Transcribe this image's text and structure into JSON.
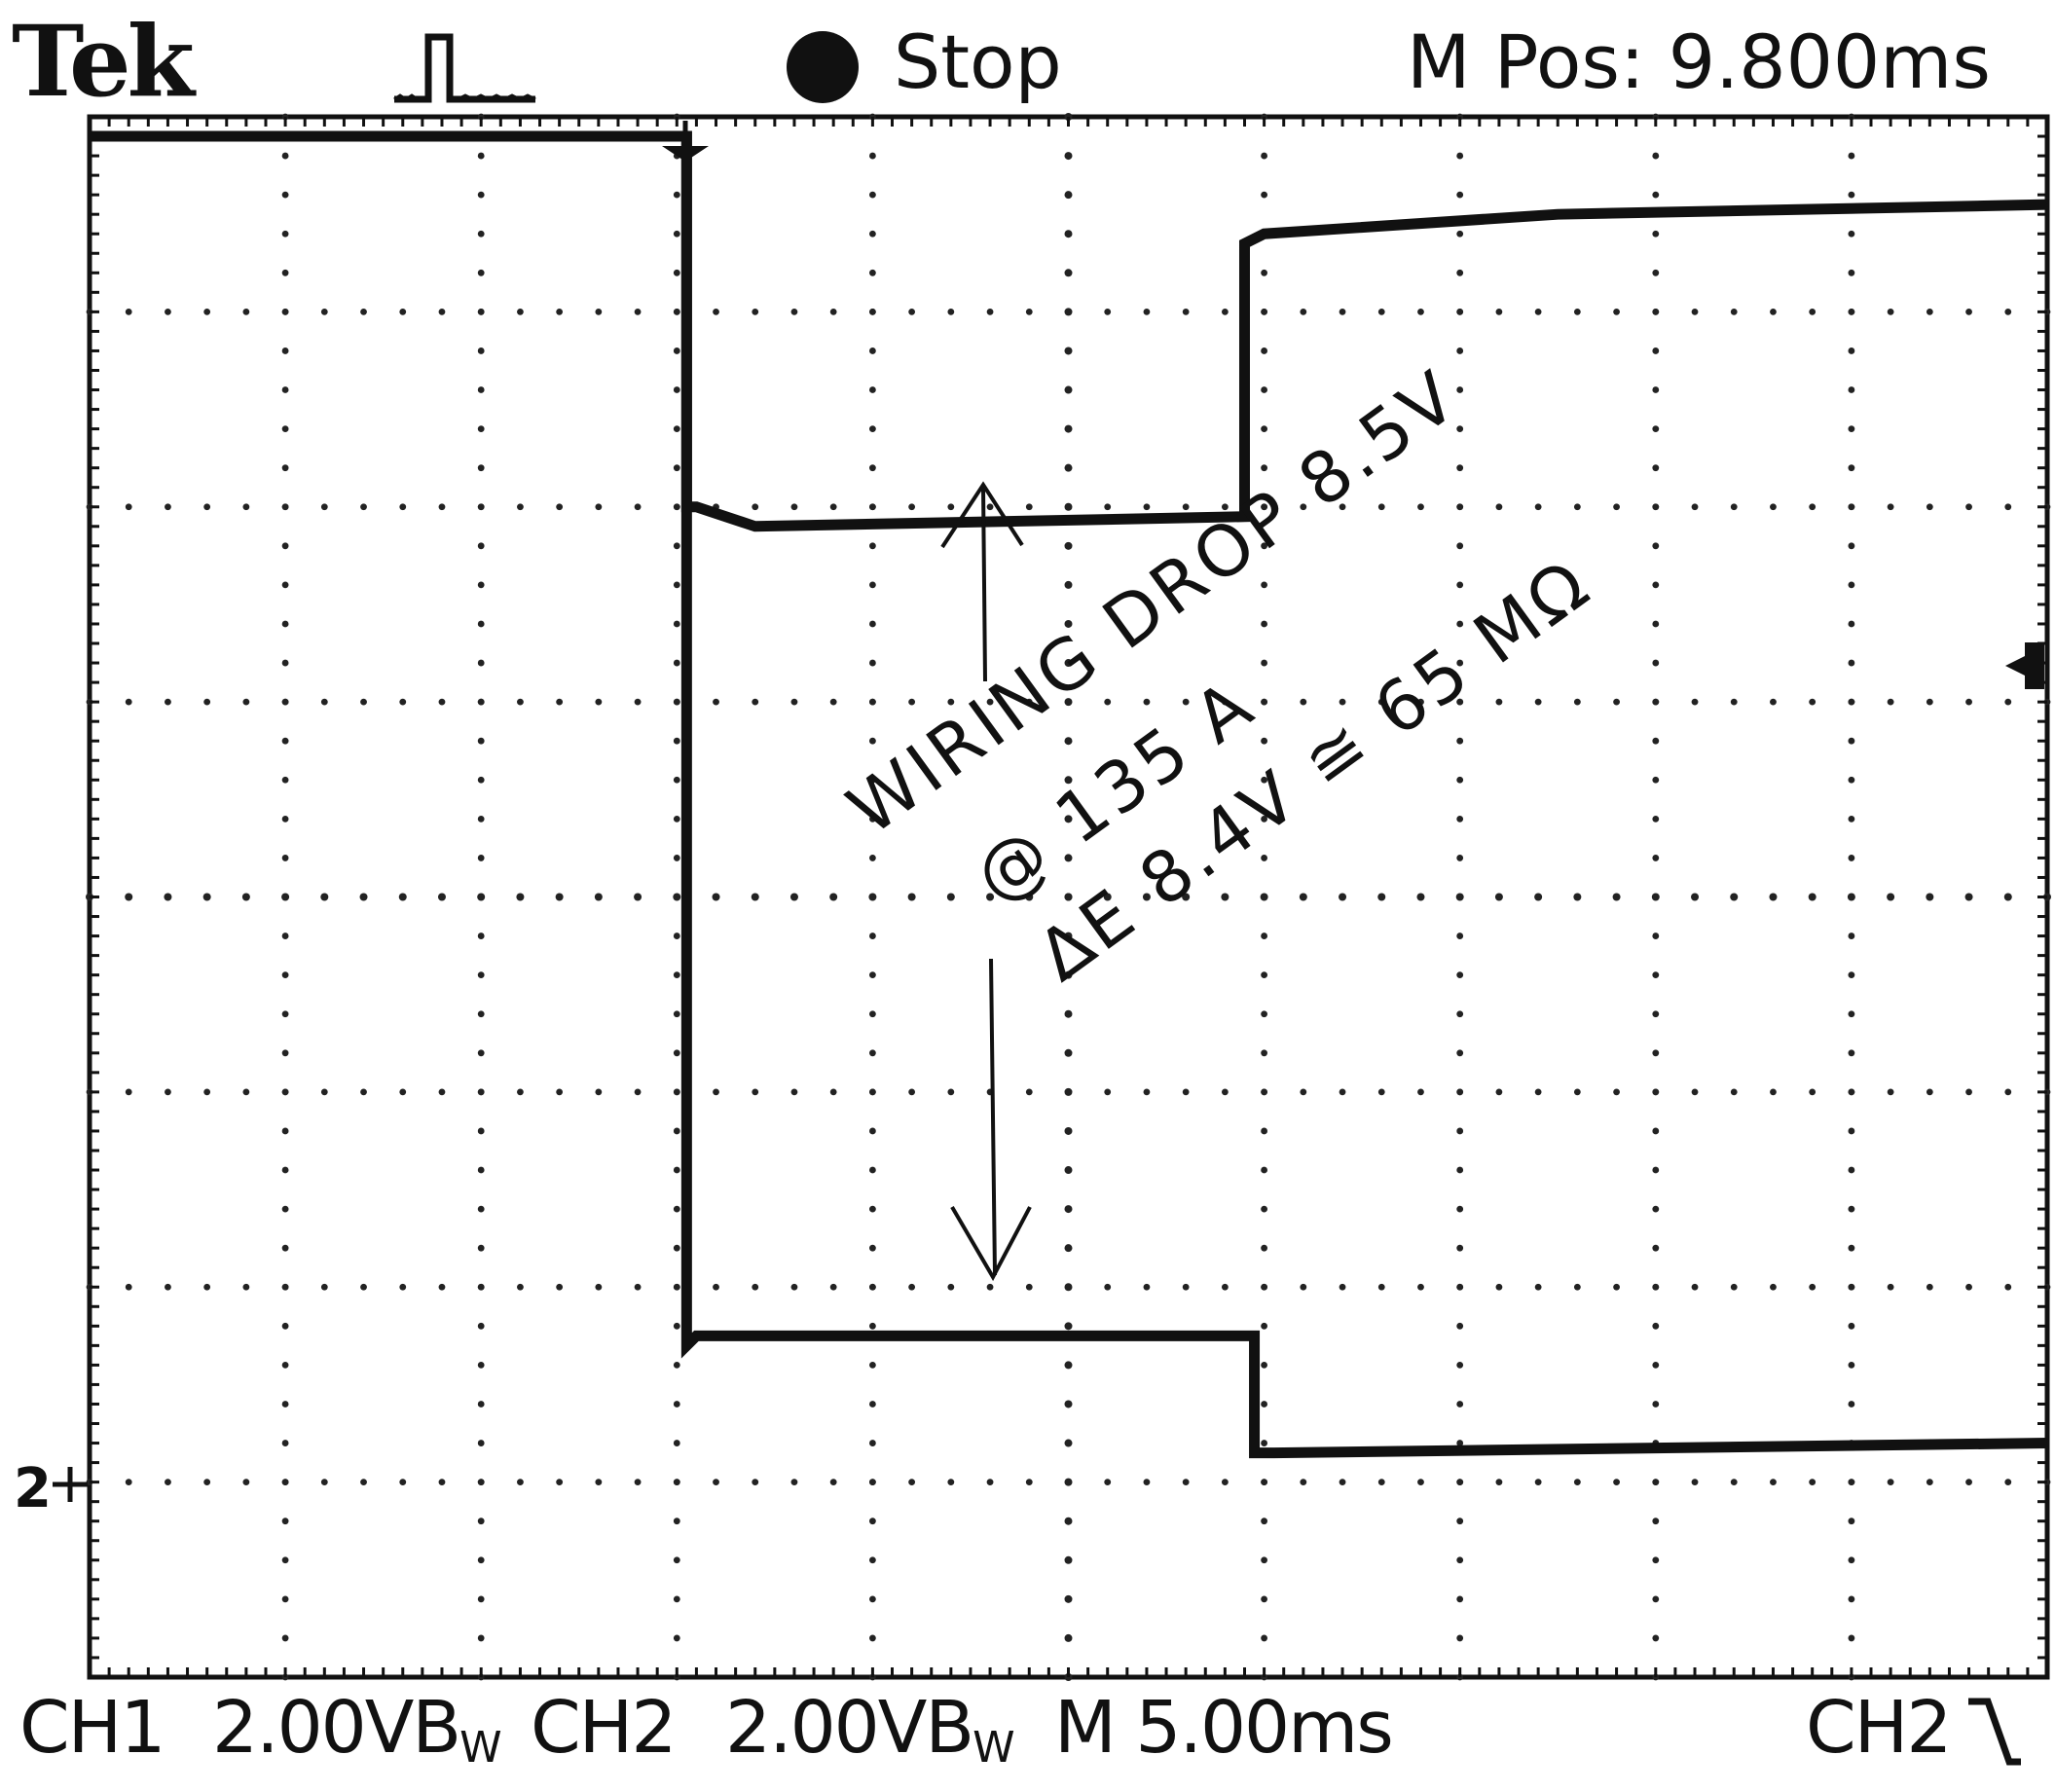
{
  "header": {
    "brand": "Tek",
    "trigger_icon": "pulse-trigger-icon",
    "acq_state": "Stop",
    "horizontal_position": "M Pos: 9.800ms"
  },
  "footer": {
    "ch1_label": "CH1",
    "ch1_scale": "2.00V",
    "ch1_bw": "B",
    "ch1_bw_sub": "W",
    "ch2_label": "CH2",
    "ch2_scale": "2.00V",
    "ch2_bw": "B",
    "ch2_bw_sub": "W",
    "timebase": "M 5.00ms",
    "trigger_source": "CH2",
    "trigger_slope_icon": "falling-edge-icon"
  },
  "markers": {
    "ch2_ground": "2"
  },
  "annotations": {
    "line1": "WIRING DROP 8.5V",
    "line2": "@ 135 A",
    "line3": "ΔE 8.4V ≅ 65 MΩ"
  },
  "colors": {
    "trace": "#111111",
    "grid": "#222222",
    "background": "#ffffff"
  },
  "chart_data": {
    "type": "line",
    "title": "",
    "xlabel": "",
    "ylabel": "",
    "divisions_x": 10,
    "divisions_y": 8,
    "xlim": [
      0,
      10
    ],
    "ylim": [
      0,
      8
    ],
    "series": [
      {
        "x": [
          0,
          3.05,
          3.05,
          3.1,
          3.4,
          5.9,
          5.9,
          6.0,
          7.5,
          10.0
        ],
        "y": [
          7.9,
          7.9,
          6.0,
          6.0,
          5.9,
          5.95,
          7.35,
          7.4,
          7.5,
          7.55
        ]
      },
      {
        "x": [
          0,
          3.05,
          3.05,
          3.1,
          5.95,
          5.95,
          6.05,
          10.0
        ],
        "y": [
          7.9,
          7.9,
          1.7,
          1.75,
          1.75,
          1.15,
          1.15,
          1.2
        ]
      }
    ]
  }
}
